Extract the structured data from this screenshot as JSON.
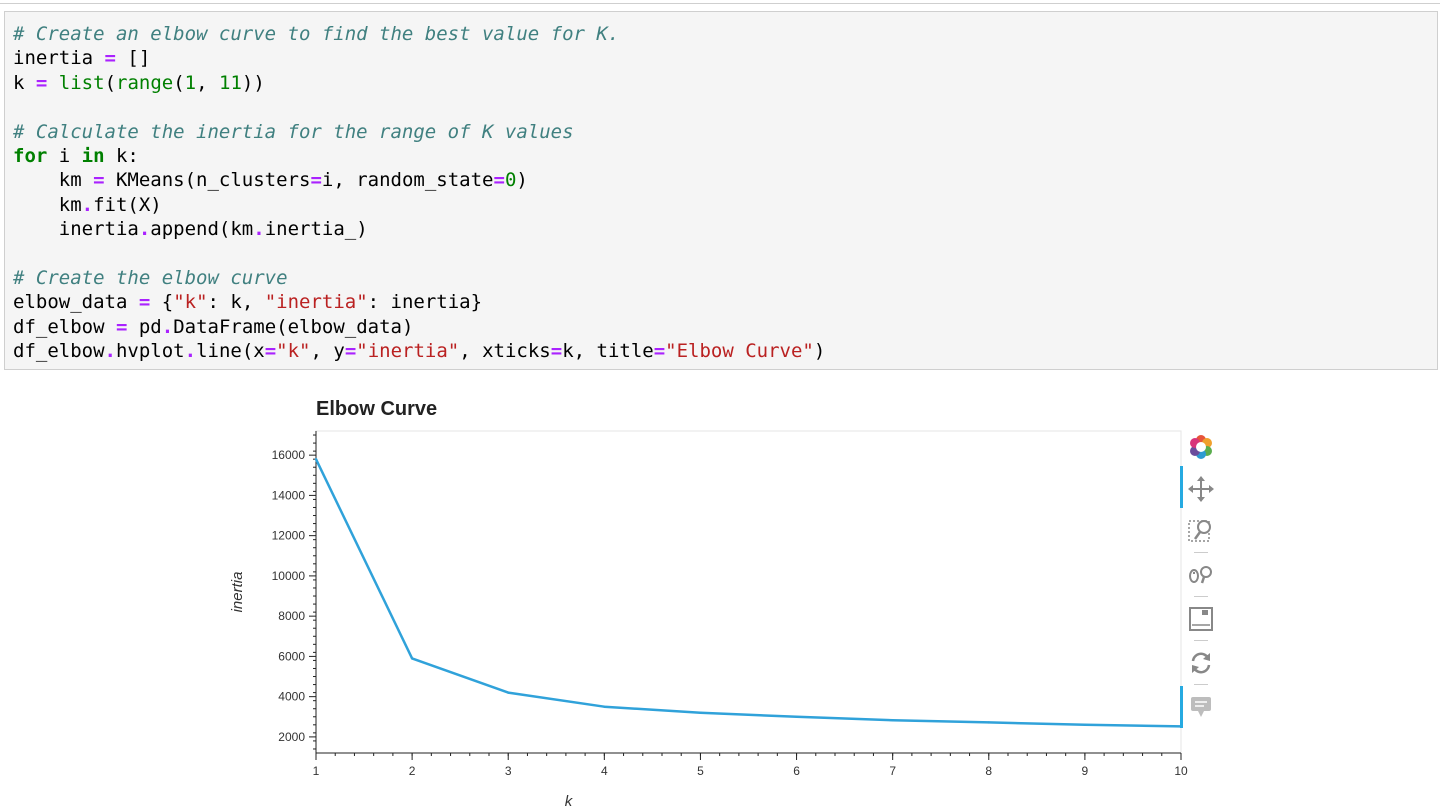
{
  "code_cell": {
    "lines": [
      [
        {
          "t": "# Create an elbow curve to find the best value for K.",
          "c": "comment"
        }
      ],
      [
        {
          "t": "inertia ",
          "c": ""
        },
        {
          "t": "=",
          "c": "op"
        },
        {
          "t": " []",
          "c": ""
        }
      ],
      [
        {
          "t": "k ",
          "c": ""
        },
        {
          "t": "=",
          "c": "op"
        },
        {
          "t": " ",
          "c": ""
        },
        {
          "t": "list",
          "c": "builtin"
        },
        {
          "t": "(",
          "c": ""
        },
        {
          "t": "range",
          "c": "builtin"
        },
        {
          "t": "(",
          "c": ""
        },
        {
          "t": "1",
          "c": "num"
        },
        {
          "t": ", ",
          "c": ""
        },
        {
          "t": "11",
          "c": "num"
        },
        {
          "t": "))",
          "c": ""
        }
      ],
      [
        {
          "t": "",
          "c": ""
        }
      ],
      [
        {
          "t": "# Calculate the inertia for the range of K values",
          "c": "comment"
        }
      ],
      [
        {
          "t": "for",
          "c": "keyword"
        },
        {
          "t": " i ",
          "c": ""
        },
        {
          "t": "in",
          "c": "keyword"
        },
        {
          "t": " k:",
          "c": ""
        }
      ],
      [
        {
          "t": "    km ",
          "c": ""
        },
        {
          "t": "=",
          "c": "op"
        },
        {
          "t": " KMeans(n_clusters",
          "c": ""
        },
        {
          "t": "=",
          "c": "op"
        },
        {
          "t": "i, random_state",
          "c": ""
        },
        {
          "t": "=",
          "c": "op"
        },
        {
          "t": "0",
          "c": "num"
        },
        {
          "t": ")",
          "c": ""
        }
      ],
      [
        {
          "t": "    km",
          "c": ""
        },
        {
          "t": ".",
          "c": "op"
        },
        {
          "t": "fit(X)",
          "c": ""
        }
      ],
      [
        {
          "t": "    inertia",
          "c": ""
        },
        {
          "t": ".",
          "c": "op"
        },
        {
          "t": "append(km",
          "c": ""
        },
        {
          "t": ".",
          "c": "op"
        },
        {
          "t": "inertia_)",
          "c": ""
        }
      ],
      [
        {
          "t": "",
          "c": ""
        }
      ],
      [
        {
          "t": "# Create the elbow curve",
          "c": "comment"
        }
      ],
      [
        {
          "t": "elbow_data ",
          "c": ""
        },
        {
          "t": "=",
          "c": "op"
        },
        {
          "t": " {",
          "c": ""
        },
        {
          "t": "\"k\"",
          "c": "str"
        },
        {
          "t": ": k, ",
          "c": ""
        },
        {
          "t": "\"inertia\"",
          "c": "str"
        },
        {
          "t": ": inertia}",
          "c": ""
        }
      ],
      [
        {
          "t": "df_elbow ",
          "c": ""
        },
        {
          "t": "=",
          "c": "op"
        },
        {
          "t": " pd",
          "c": ""
        },
        {
          "t": ".",
          "c": "op"
        },
        {
          "t": "DataFrame(elbow_data)",
          "c": ""
        }
      ],
      [
        {
          "t": "df_elbow",
          "c": ""
        },
        {
          "t": ".",
          "c": "op"
        },
        {
          "t": "hvplot",
          "c": ""
        },
        {
          "t": ".",
          "c": "op"
        },
        {
          "t": "line(x",
          "c": ""
        },
        {
          "t": "=",
          "c": "op"
        },
        {
          "t": "\"k\"",
          "c": "str"
        },
        {
          "t": ", y",
          "c": ""
        },
        {
          "t": "=",
          "c": "op"
        },
        {
          "t": "\"inertia\"",
          "c": "str"
        },
        {
          "t": ", xticks",
          "c": ""
        },
        {
          "t": "=",
          "c": "op"
        },
        {
          "t": "k, title",
          "c": ""
        },
        {
          "t": "=",
          "c": "op"
        },
        {
          "t": "\"Elbow Curve\"",
          "c": "str"
        },
        {
          "t": ")",
          "c": ""
        }
      ]
    ]
  },
  "chart_data": {
    "type": "line",
    "title": "Elbow Curve",
    "xlabel": "k",
    "ylabel": "inertia",
    "x": [
      1,
      2,
      3,
      4,
      5,
      6,
      7,
      8,
      9,
      10
    ],
    "series": [
      {
        "values": [
          15800,
          5900,
          4200,
          3500,
          3200,
          3000,
          2830,
          2720,
          2600,
          2520
        ]
      }
    ],
    "xlim": [
      1,
      10
    ],
    "ylim": [
      1200,
      17200
    ],
    "xticks": [
      1,
      2,
      3,
      4,
      5,
      6,
      7,
      8,
      9,
      10
    ],
    "yticks": [
      2000,
      4000,
      6000,
      8000,
      10000,
      12000,
      14000,
      16000
    ],
    "grid": false,
    "line_color": "#30a2da"
  },
  "toolbar": {
    "tools": [
      {
        "name": "bokeh-logo-icon",
        "interactable": true
      },
      {
        "name": "pan-icon",
        "interactable": true
      },
      {
        "name": "box-zoom-icon",
        "interactable": true
      },
      {
        "name": "wheel-zoom-icon",
        "interactable": true
      },
      {
        "name": "save-icon",
        "interactable": true
      },
      {
        "name": "reset-icon",
        "interactable": true
      },
      {
        "name": "hover-icon",
        "interactable": true
      }
    ],
    "accent_color": "#26aae1"
  }
}
